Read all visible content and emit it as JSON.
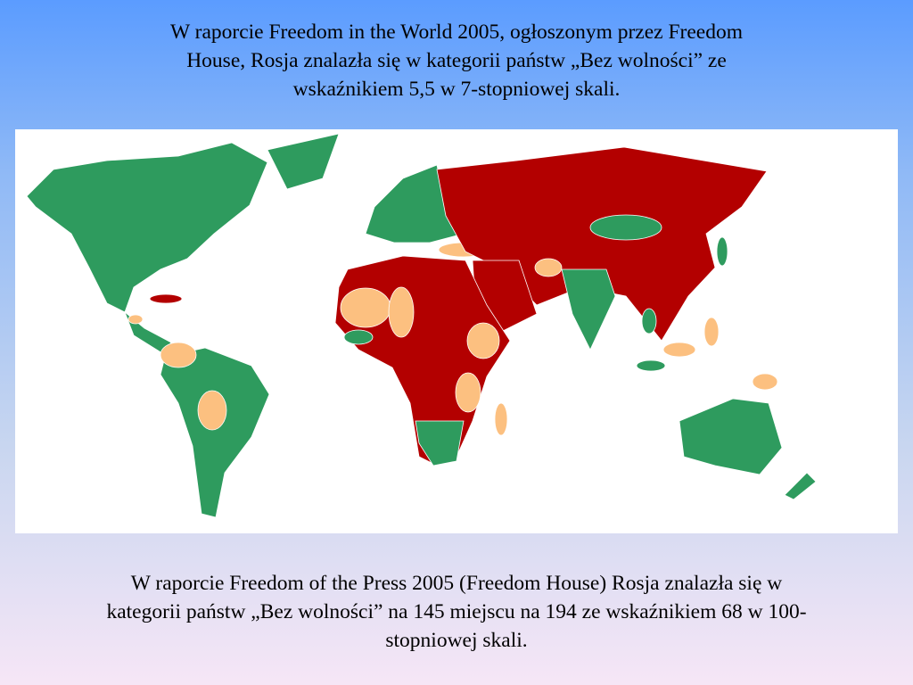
{
  "header": {
    "lines": [
      "W raporcie Freedom in the World 2005, ogłoszonym przez Freedom",
      "House, Rosja znalazła się w kategorii państw „Bez wolności” ze",
      "wskaźnikiem 5,5 w 7-stopniowej skali."
    ]
  },
  "footer": {
    "lines": [
      "W raporcie Freedom of the Press 2005 (Freedom House) Rosja znalazła się w",
      "kategorii państw „Bez wolności” na 145 miejscu na 194 ze wskaźnikiem 68 w 100-",
      "stopniowej skali."
    ]
  }
}
